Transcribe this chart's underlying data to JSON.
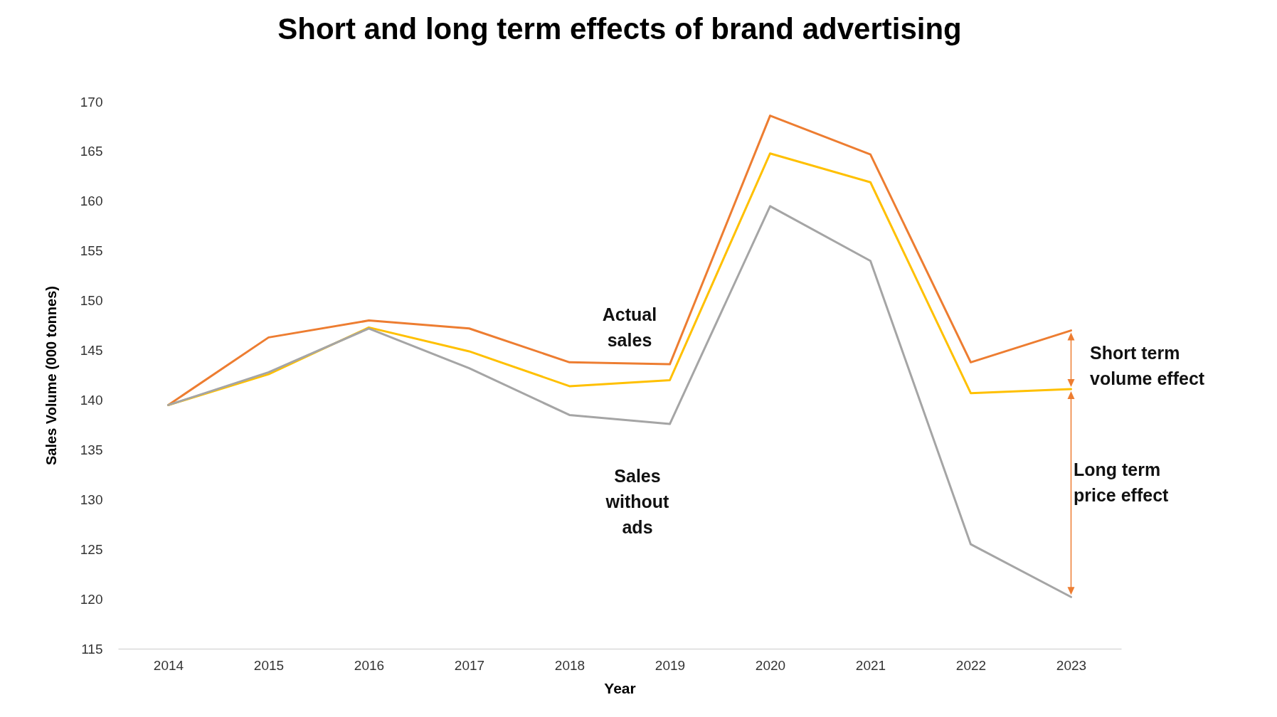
{
  "chart_data": {
    "type": "line",
    "title": "Short and long term effects of brand advertising",
    "xlabel": "Year",
    "ylabel": "Sales Volume (000 tonnes)",
    "categories": [
      "2014",
      "2015",
      "2016",
      "2017",
      "2018",
      "2019",
      "2020",
      "2021",
      "2022",
      "2023"
    ],
    "series": [
      {
        "name": "Actual sales",
        "color": "#ed7d31",
        "values": [
          139.5,
          146.3,
          148.0,
          147.2,
          143.8,
          143.6,
          168.6,
          164.7,
          143.8,
          147.0
        ]
      },
      {
        "color": "#ffc000",
        "values": [
          139.5,
          142.6,
          147.3,
          144.9,
          141.4,
          142.0,
          164.8,
          161.9,
          140.7,
          141.1
        ]
      },
      {
        "name": "Sales without ads",
        "color": "#a5a5a5",
        "values": [
          139.5,
          142.8,
          147.2,
          143.2,
          138.5,
          137.6,
          159.5,
          154.0,
          125.5,
          120.2
        ]
      }
    ],
    "ylim": [
      115,
      170
    ],
    "yticks": [
      115,
      120,
      125,
      130,
      135,
      140,
      145,
      150,
      155,
      160,
      165,
      170
    ],
    "annotations": [
      "Short term volume effect",
      "Long term price effect"
    ],
    "grid": false,
    "legend": false,
    "marker": "none",
    "line_style": "solid"
  }
}
